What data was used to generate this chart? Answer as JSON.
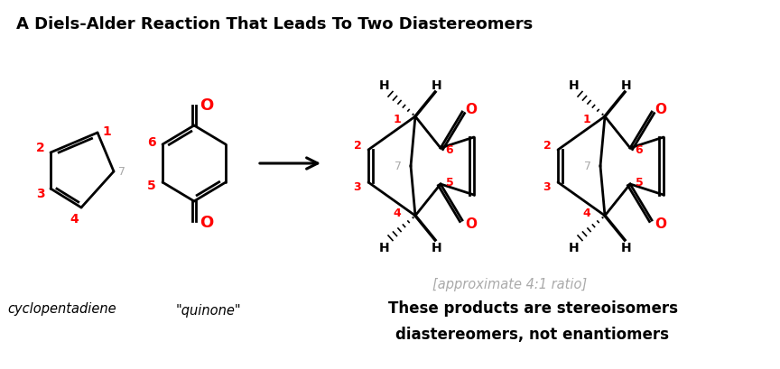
{
  "title": "A Diels-Alder Reaction That Leads To Two Diastereomers",
  "title_fontsize": 13,
  "title_fontweight": "bold",
  "bg_color": "#ffffff",
  "red": "#ff0000",
  "gray": "#aaaaaa",
  "black": "#000000",
  "text_cyclopentadiene": "cyclopentadiene",
  "text_quinone": "\"quinone\"",
  "text_ratio": "[approximate 4:1 ratio]",
  "text_stereo1": "These products are stereoisomers",
  "text_stereo2": "diastereomers, not enantiomers"
}
